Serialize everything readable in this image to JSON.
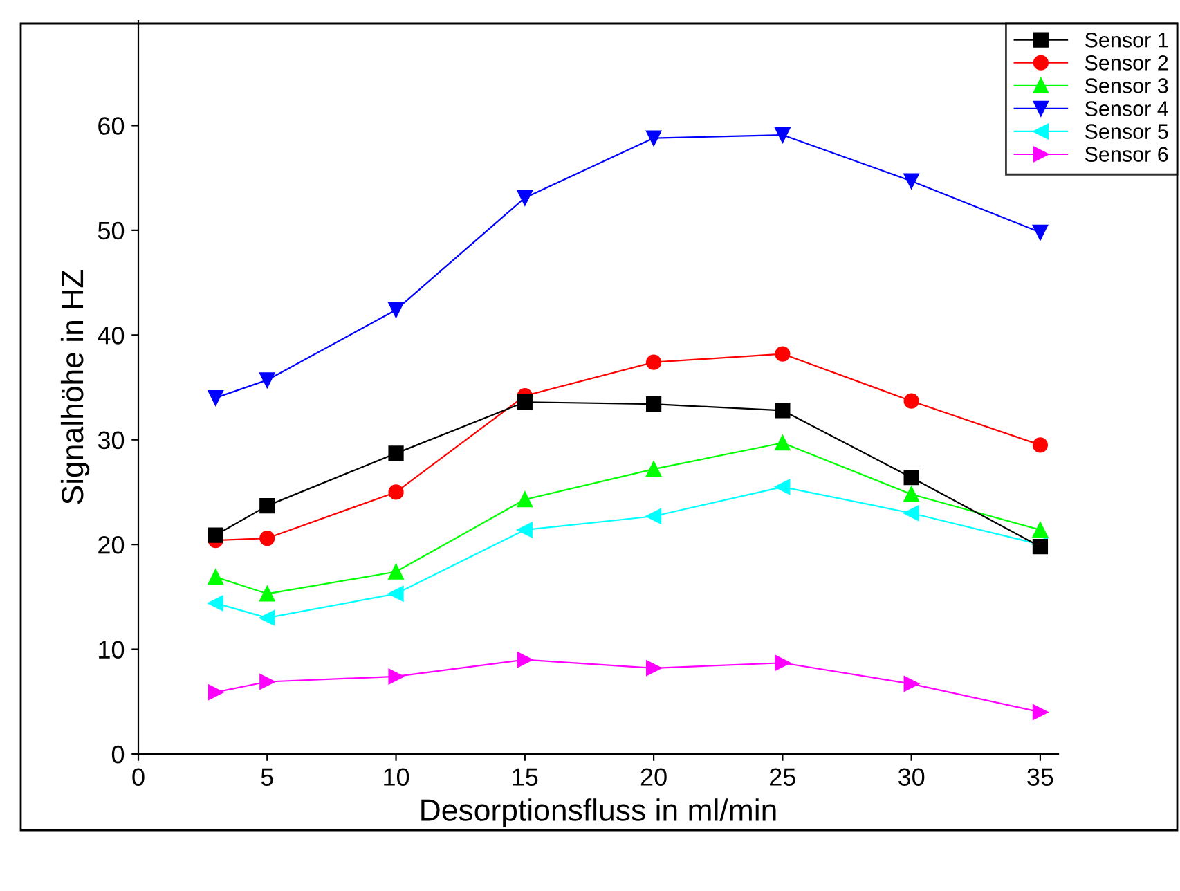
{
  "chart_data": {
    "type": "line",
    "xlabel": "Desorptionsfluss in ml/min",
    "ylabel": "Signalhöhe in HZ",
    "x": [
      3,
      5,
      10,
      15,
      20,
      25,
      30,
      35
    ],
    "xlim": [
      0,
      35.7
    ],
    "xticks": [
      0,
      5,
      10,
      15,
      20,
      25,
      30,
      35
    ],
    "ylim": [
      0,
      70
    ],
    "yticks": [
      0,
      10,
      20,
      30,
      40,
      50,
      60
    ],
    "grid": false,
    "legend": "top right",
    "line_style": "solid",
    "series": [
      {
        "name": "Sensor 1",
        "color": "#000000",
        "marker": "square",
        "values": [
          20.9,
          23.7,
          28.7,
          33.6,
          33.4,
          32.8,
          26.4,
          19.8
        ]
      },
      {
        "name": "Sensor 2",
        "color": "#ff0000",
        "marker": "circle",
        "values": [
          20.4,
          20.6,
          25.0,
          34.2,
          37.4,
          38.2,
          33.7,
          29.5
        ]
      },
      {
        "name": "Sensor 3",
        "color": "#00ff00",
        "marker": "triangle",
        "values": [
          16.9,
          15.3,
          17.4,
          24.3,
          27.2,
          29.7,
          24.8,
          21.4
        ]
      },
      {
        "name": "Sensor 4",
        "color": "#0000ff",
        "marker": "triangle_down",
        "values": [
          34.0,
          35.7,
          42.4,
          53.1,
          58.8,
          59.1,
          54.7,
          49.8
        ]
      },
      {
        "name": "Sensor 5",
        "color": "#00ffff",
        "marker": "triangle_left",
        "values": [
          14.4,
          13.0,
          15.3,
          21.4,
          22.7,
          25.5,
          23.0,
          20.0
        ]
      },
      {
        "name": "Sensor 6",
        "color": "#ff00ff",
        "marker": "triangle_right",
        "values": [
          5.9,
          6.9,
          7.4,
          9.0,
          8.2,
          8.7,
          6.7,
          4.0
        ]
      }
    ]
  }
}
